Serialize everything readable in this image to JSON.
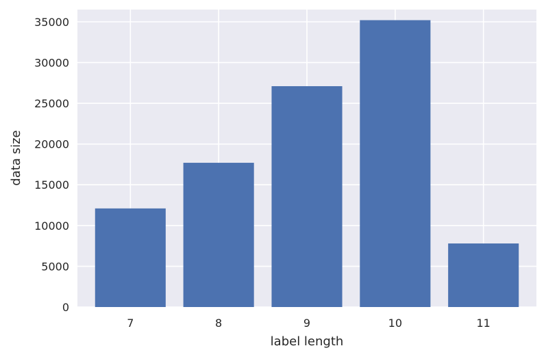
{
  "chart_data": {
    "type": "bar",
    "categories": [
      "7",
      "8",
      "9",
      "10",
      "11"
    ],
    "values": [
      12100,
      17700,
      27100,
      35200,
      7800
    ],
    "xlabel": "label length",
    "ylabel": "data size",
    "ylim": [
      0,
      36500
    ],
    "yticks": [
      0,
      5000,
      10000,
      15000,
      20000,
      25000,
      30000,
      35000
    ],
    "grid": true,
    "colors": {
      "bar": "#4c72b0",
      "plot_background": "#eaeaf2",
      "grid": "#ffffff",
      "text": "#262626"
    }
  }
}
